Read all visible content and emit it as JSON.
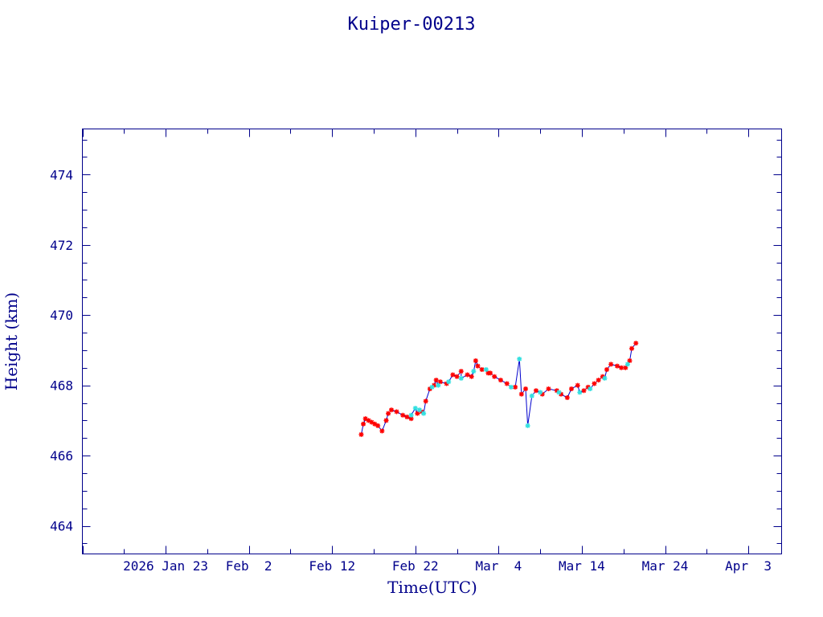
{
  "chart_data": {
    "type": "line",
    "title": "Kuiper-00213",
    "xlabel": "Time(UTC)",
    "ylabel": "Height (km)",
    "xlim": [
      "2026-01-13",
      "2026-04-07"
    ],
    "ylim": [
      463.2,
      475.3
    ],
    "grid": false,
    "x_tick_labels": [
      {
        "date": "2026-01-23",
        "label": "2026 Jan 23"
      },
      {
        "date": "2026-02-02",
        "label": "Feb  2"
      },
      {
        "date": "2026-02-12",
        "label": "Feb 12"
      },
      {
        "date": "2026-02-22",
        "label": "Feb 22"
      },
      {
        "date": "2026-03-04",
        "label": "Mar  4"
      },
      {
        "date": "2026-03-14",
        "label": "Mar 14"
      },
      {
        "date": "2026-03-24",
        "label": "Mar 24"
      },
      {
        "date": "2026-04-03",
        "label": "Apr  3"
      }
    ],
    "y_ticks": [
      464,
      466,
      468,
      470,
      472,
      474
    ],
    "y_tick_labels": [
      "464",
      "466",
      "468",
      "470",
      "472",
      "474"
    ],
    "line_color": "#0000cd",
    "series": [
      {
        "marker": "star",
        "color": "#ff0000",
        "points": [
          [
            "2026-02-15 12:00",
            466.6
          ],
          [
            "2026-02-15 18:00",
            466.9
          ],
          [
            "2026-02-16 00:00",
            467.05
          ],
          [
            "2026-02-16 09:00",
            467.0
          ],
          [
            "2026-02-16 18:00",
            466.95
          ],
          [
            "2026-02-17 03:00",
            466.9
          ],
          [
            "2026-02-17 12:00",
            466.85
          ],
          [
            "2026-02-18 00:00",
            466.7
          ],
          [
            "2026-02-18 12:00",
            467.0
          ],
          [
            "2026-02-18 18:00",
            467.2
          ],
          [
            "2026-02-19 03:00",
            467.3
          ],
          [
            "2026-02-19 18:00",
            467.25
          ],
          [
            "2026-02-20 12:00",
            467.15
          ],
          [
            "2026-02-21 00:00",
            467.1
          ],
          [
            "2026-02-21 12:00",
            467.05
          ],
          [
            "2026-02-22 06:00",
            467.2
          ],
          [
            "2026-02-22 18:00",
            467.25
          ],
          [
            "2026-02-23 06:00",
            467.55
          ],
          [
            "2026-02-23 18:00",
            467.9
          ],
          [
            "2026-02-24 06:00",
            468.0
          ],
          [
            "2026-02-24 12:00",
            468.15
          ],
          [
            "2026-02-25 00:00",
            468.1
          ],
          [
            "2026-02-25 18:00",
            468.05
          ],
          [
            "2026-02-26 12:00",
            468.3
          ],
          [
            "2026-02-27 00:00",
            468.25
          ],
          [
            "2026-02-27 12:00",
            468.4
          ],
          [
            "2026-02-28 06:00",
            468.3
          ],
          [
            "2026-02-28 18:00",
            468.25
          ],
          [
            "2026-03-01 06:00",
            468.7
          ],
          [
            "2026-03-01 12:00",
            468.55
          ],
          [
            "2026-03-02 00:00",
            468.45
          ],
          [
            "2026-03-02 18:00",
            468.35
          ],
          [
            "2026-03-03 00:00",
            468.35
          ],
          [
            "2026-03-03 12:00",
            468.25
          ],
          [
            "2026-03-04 06:00",
            468.15
          ],
          [
            "2026-03-05 00:00",
            468.05
          ],
          [
            "2026-03-06 00:00",
            467.95
          ],
          [
            "2026-03-06 18:00",
            467.75
          ],
          [
            "2026-03-07 06:00",
            467.9
          ],
          [
            "2026-03-08 12:00",
            467.85
          ],
          [
            "2026-03-09 06:00",
            467.75
          ],
          [
            "2026-03-10 00:00",
            467.9
          ],
          [
            "2026-03-11 00:00",
            467.85
          ],
          [
            "2026-03-11 12:00",
            467.75
          ],
          [
            "2026-03-12 06:00",
            467.65
          ],
          [
            "2026-03-12 18:00",
            467.9
          ],
          [
            "2026-03-13 12:00",
            468.0
          ],
          [
            "2026-03-14 06:00",
            467.85
          ],
          [
            "2026-03-14 18:00",
            467.95
          ],
          [
            "2026-03-15 12:00",
            468.05
          ],
          [
            "2026-03-16 00:00",
            468.15
          ],
          [
            "2026-03-16 12:00",
            468.25
          ],
          [
            "2026-03-17 00:00",
            468.45
          ],
          [
            "2026-03-17 12:00",
            468.6
          ],
          [
            "2026-03-18 06:00",
            468.55
          ],
          [
            "2026-03-18 18:00",
            468.5
          ],
          [
            "2026-03-19 06:00",
            468.5
          ],
          [
            "2026-03-19 18:00",
            468.7
          ],
          [
            "2026-03-20 00:00",
            469.05
          ],
          [
            "2026-03-20 12:00",
            469.2
          ]
        ]
      },
      {
        "marker": "star",
        "color": "#33e0e0",
        "points": [
          [
            "2026-02-21 12:00",
            467.15
          ],
          [
            "2026-02-22 00:00",
            467.35
          ],
          [
            "2026-02-22 12:00",
            467.3
          ],
          [
            "2026-02-23 00:00",
            467.2
          ],
          [
            "2026-02-24 00:00",
            467.95
          ],
          [
            "2026-02-24 18:00",
            468.0
          ],
          [
            "2026-02-26 00:00",
            468.1
          ],
          [
            "2026-02-27 12:00",
            468.2
          ],
          [
            "2026-03-01 00:00",
            468.4
          ],
          [
            "2026-03-02 12:00",
            468.45
          ],
          [
            "2026-03-05 12:00",
            467.95
          ],
          [
            "2026-03-06 12:00",
            468.75
          ],
          [
            "2026-03-07 12:00",
            466.85
          ],
          [
            "2026-03-08 00:00",
            467.7
          ],
          [
            "2026-03-09 00:00",
            467.8
          ],
          [
            "2026-03-11 06:00",
            467.8
          ],
          [
            "2026-03-13 18:00",
            467.8
          ],
          [
            "2026-03-15 00:00",
            467.9
          ],
          [
            "2026-03-16 18:00",
            468.2
          ],
          [
            "2026-03-19 12:00",
            468.6
          ]
        ]
      }
    ]
  }
}
